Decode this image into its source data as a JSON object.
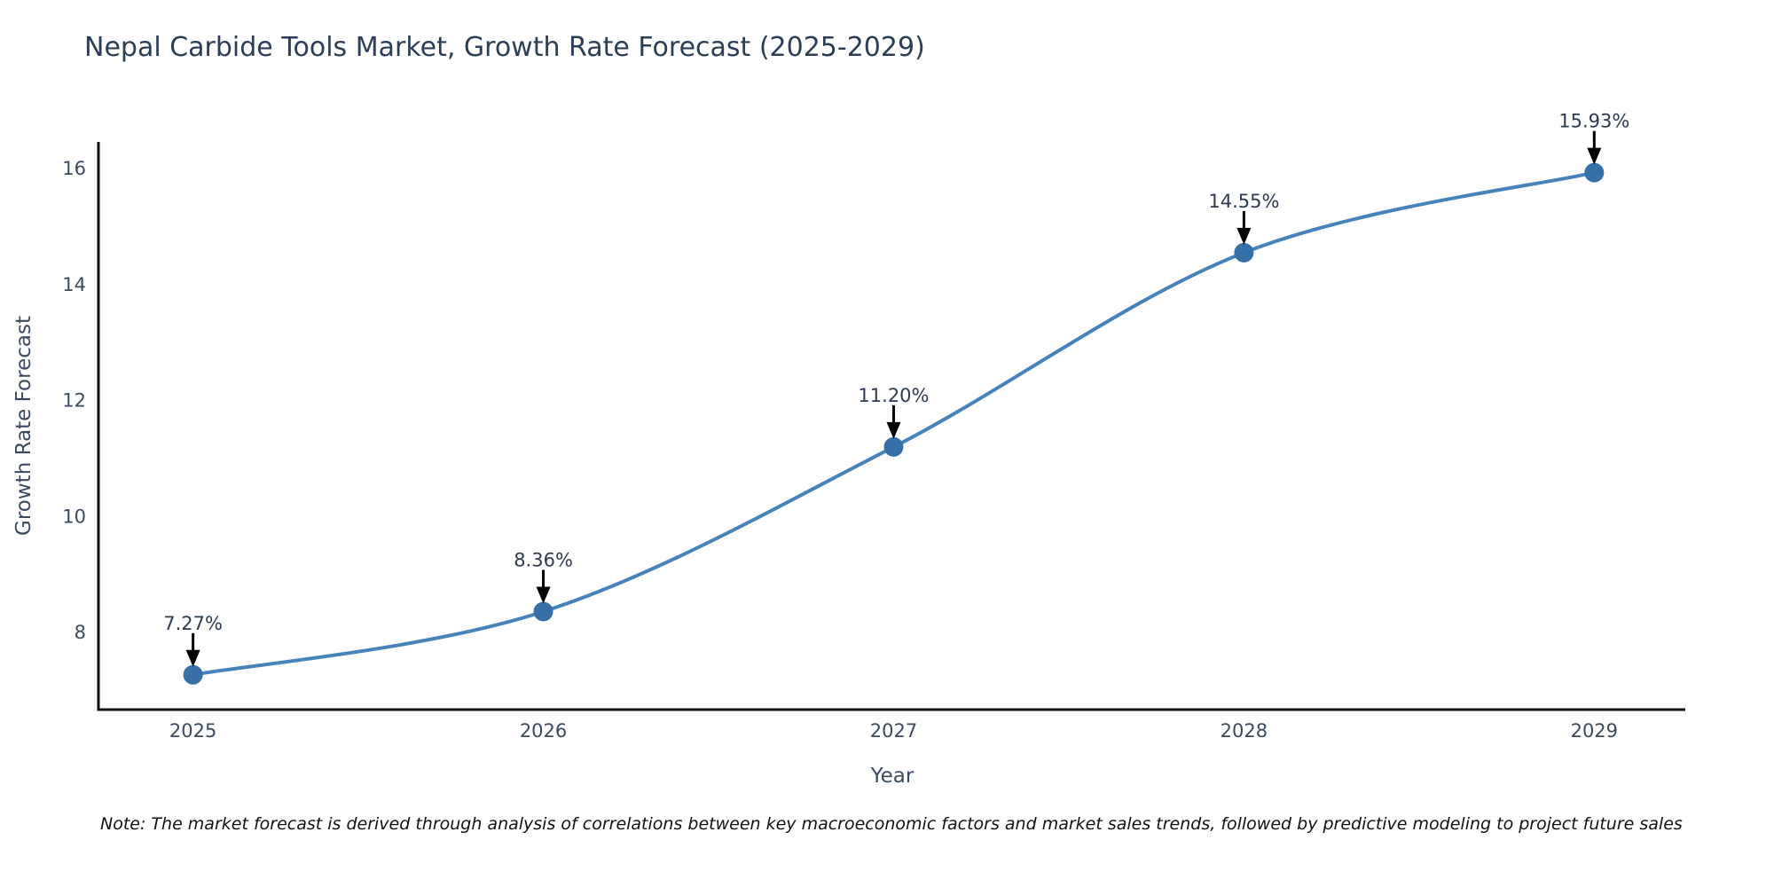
{
  "chart_data": {
    "type": "line",
    "title": "Nepal Carbide Tools Market, Growth Rate Forecast (2025-2029)",
    "xlabel": "Year",
    "ylabel": "Growth Rate Forecast",
    "x": [
      2025,
      2026,
      2027,
      2028,
      2029
    ],
    "series": [
      {
        "name": "Growth Rate Forecast",
        "values": [
          7.27,
          8.36,
          11.2,
          14.55,
          15.93
        ]
      }
    ],
    "point_labels": [
      "7.27%",
      "8.36%",
      "11.20%",
      "14.55%",
      "15.93%"
    ],
    "xtick_labels": [
      "2025",
      "2026",
      "2027",
      "2028",
      "2029"
    ],
    "ytick_values": [
      8,
      10,
      12,
      14,
      16
    ],
    "ytick_labels": [
      "8",
      "10",
      "12",
      "14",
      "16"
    ],
    "xlim": [
      2024.73,
      2029.26
    ],
    "ylim": [
      6.67,
      16.46
    ],
    "grid": false,
    "legend_position": "none",
    "line_shape": "spline",
    "annotation_arrows": true,
    "note": "Note: The market forecast is derived through analysis of correlations between key macroeconomic factors and market sales trends, followed by predictive modeling to project future sales",
    "colors": {
      "line": "#4783bb",
      "marker": "#376fa9",
      "axis": "#111111",
      "arrow": "#000000",
      "title_text": "#2c3e56",
      "tick_text": "#3b4a5f",
      "annotation_text": "#2e3a4e",
      "note_text": "#111111"
    }
  }
}
